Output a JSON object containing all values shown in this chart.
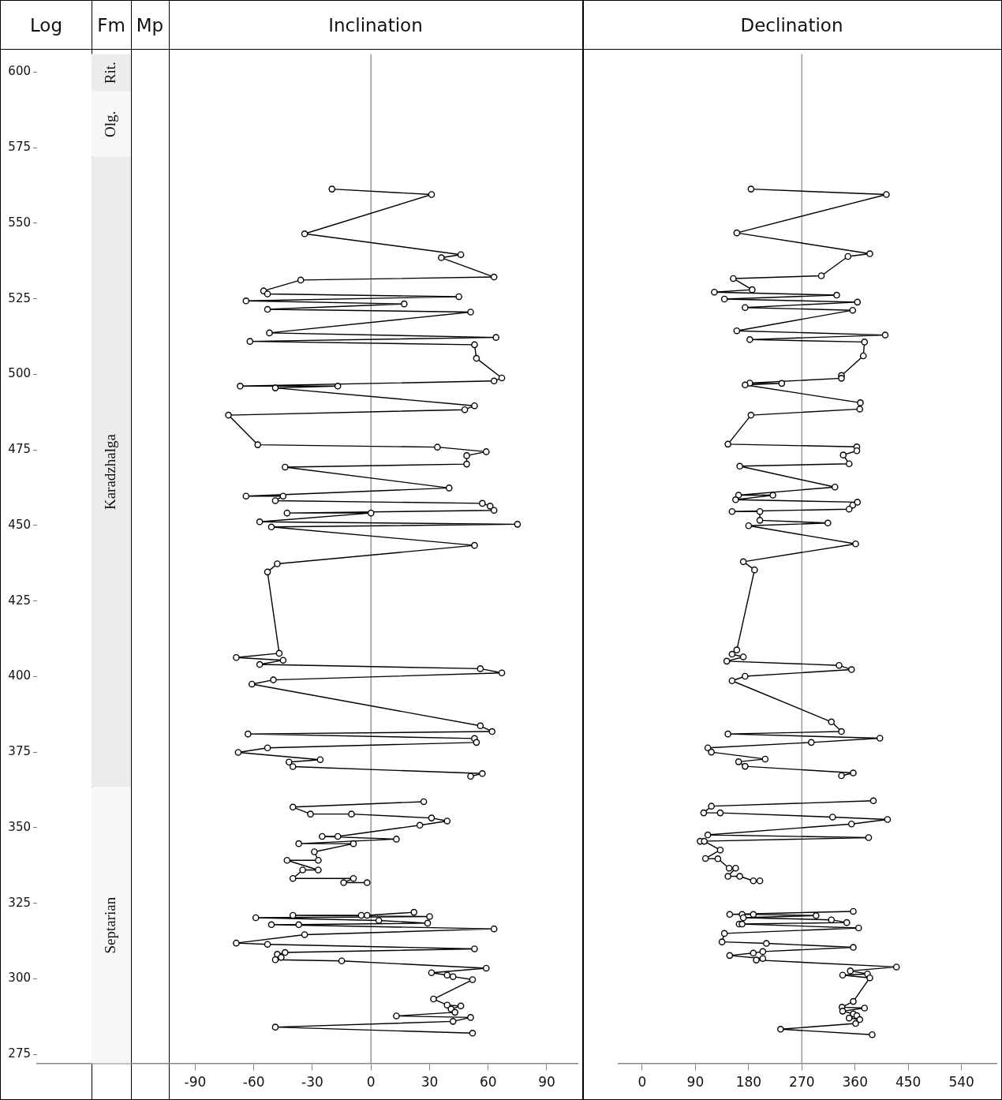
{
  "chart_data": [
    {
      "type": "line",
      "title": "Inclination",
      "annotations": [
        "Log",
        "Fm",
        "Mp"
      ],
      "marker": "circle",
      "line_style": "solid",
      "xlim": [
        -171,
        106
      ],
      "xticks": [
        -90,
        -60,
        -30,
        0,
        30,
        60,
        90
      ],
      "ylim": [
        272,
        606
      ],
      "yticks": [
        275,
        300,
        325,
        350,
        375,
        400,
        425,
        450,
        475,
        500,
        525,
        550,
        575,
        600
      ],
      "ref_lines": [
        {
          "axis": "x",
          "value": 0,
          "color": "#999999"
        }
      ],
      "bands": [
        {
          "axis": "y",
          "from": 593.6,
          "to": 606,
          "label": "Rit.",
          "color": "#ececec"
        },
        {
          "axis": "y",
          "from": 572,
          "to": 593.6,
          "label": "Olg.",
          "color": "#f7f7f7"
        },
        {
          "axis": "y",
          "from": 363.4,
          "to": 572,
          "label": "Karadzhalga",
          "color": "#ececec"
        },
        {
          "axis": "y",
          "from": 272,
          "to": 363.4,
          "label": "Septarian",
          "color": "#f7f7f7"
        }
      ],
      "series": [
        {
          "color": "#000000",
          "x": [
            -20,
            31,
            -34,
            46,
            36,
            63,
            -36,
            -55,
            -53,
            45,
            -64,
            17,
            -53,
            51,
            -52,
            64,
            -62,
            53,
            54,
            67,
            63,
            -67,
            -17,
            -49,
            53,
            48,
            -73,
            -58,
            34,
            59,
            49,
            49,
            -44,
            40,
            -64,
            -45,
            -49,
            57,
            61,
            63,
            -43,
            0,
            -57,
            75,
            -51,
            53,
            -48,
            -53,
            -47,
            -69,
            -45,
            -57,
            56,
            67,
            -50,
            -61,
            56,
            62,
            -63,
            53,
            54,
            -53,
            -68,
            -26,
            -42,
            -40,
            57,
            51,
            null,
            27,
            -40,
            -31,
            -10,
            31,
            39,
            25,
            -17,
            -25,
            13,
            -37,
            -9,
            -29,
            -27,
            -43,
            -27,
            -35,
            -40,
            -9,
            -14,
            -2,
            null,
            22,
            -2,
            -5,
            -40,
            30,
            -59,
            4,
            29,
            -37,
            -51,
            63,
            -34,
            -69,
            -53,
            53,
            -44,
            -48,
            -46,
            -49,
            -15,
            59,
            31,
            39,
            42,
            52,
            32,
            39,
            46,
            41,
            43,
            13,
            51,
            42,
            -49,
            52
          ],
          "values": [
            561.3,
            559.5,
            546.5,
            539.6,
            538.6,
            532.2,
            531.2,
            527.6,
            526.6,
            525.7,
            524.3,
            523.3,
            521.5,
            520.6,
            513.7,
            512.2,
            510.9,
            509.8,
            505.3,
            498.8,
            497.8,
            496.1,
            496.1,
            495.5,
            489.6,
            488.3,
            486.5,
            476.7,
            475.9,
            474.4,
            473.1,
            470.3,
            469.3,
            462.4,
            459.7,
            459.7,
            458.2,
            457.3,
            456.4,
            455.0,
            454.1,
            454.1,
            451.2,
            450.4,
            449.5,
            443.4,
            437.3,
            434.6,
            407.7,
            406.3,
            405.4,
            404.0,
            402.6,
            401.2,
            398.9,
            397.5,
            383.7,
            381.8,
            381.0,
            379.5,
            378.2,
            376.4,
            374.9,
            372.5,
            371.7,
            370.2,
            367.9,
            367.0,
            null,
            358.6,
            356.8,
            354.5,
            354.5,
            353.2,
            352.2,
            350.8,
            347.1,
            347.1,
            346.2,
            344.7,
            344.7,
            342.0,
            339.2,
            339.2,
            336.0,
            336.0,
            333.2,
            333.2,
            331.8,
            331.8,
            null,
            322.0,
            321.0,
            321.0,
            321.0,
            320.6,
            320.2,
            319.3,
            318.4,
            317.9,
            317.9,
            316.5,
            314.6,
            311.8,
            311.4,
            309.9,
            308.7,
            308.1,
            307.1,
            306.3,
            305.9,
            303.5,
            302.0,
            301.2,
            300.7,
            299.7,
            293.3,
            291.3,
            291.0,
            290.0,
            288.9,
            287.7,
            287.2,
            285.9,
            284.0,
            282.0
          ]
        }
      ]
    },
    {
      "type": "line",
      "title": "Declination",
      "marker": "circle",
      "line_style": "solid",
      "tick_labels": "x",
      "xlim": [
        -40,
        600
      ],
      "xticks": [
        0,
        90,
        180,
        270,
        360,
        450,
        540
      ],
      "ylim": [
        272,
        606
      ],
      "ref_lines": [
        {
          "axis": "x",
          "value": 270,
          "color": "#999999"
        }
      ],
      "series": [
        {
          "color": "#000000",
          "x": [
            184,
            413,
            160,
            385,
            348,
            303,
            154,
            186,
            122,
            329,
            139,
            364,
            174,
            356,
            160,
            411,
            182,
            376,
            374,
            337,
            337,
            182,
            236,
            174,
            369,
            368,
            184,
            145,
            363,
            363,
            340,
            350,
            165,
            326,
            163,
            221,
            158,
            364,
            356,
            350,
            152,
            199,
            199,
            314,
            180,
            361,
            171,
            190,
            160,
            152,
            171,
            143,
            333,
            354,
            174,
            152,
            320,
            337,
            145,
            402,
            286,
            111,
            117,
            208,
            163,
            174,
            357,
            337,
            null,
            391,
            117,
            104,
            132,
            322,
            415,
            354,
            111,
            383,
            98,
            105,
            132,
            107,
            128,
            147,
            158,
            145,
            165,
            188,
            199,
            null,
            357,
            148,
            169,
            188,
            294,
            171,
            320,
            346,
            164,
            169,
            366,
            139,
            135,
            210,
            357,
            204,
            188,
            148,
            204,
            193,
            430,
            352,
            381,
            339,
            385,
            357,
            338,
            376,
            339,
            357,
            363,
            350,
            368,
            361,
            234,
            389
          ],
          "values": [
            561.3,
            559.5,
            546.8,
            539.9,
            539.0,
            532.6,
            531.7,
            528.0,
            527.2,
            526.2,
            524.9,
            523.9,
            522.1,
            521.2,
            514.4,
            513.0,
            511.5,
            510.7,
            506.1,
            499.6,
            498.7,
            497.1,
            497.0,
            496.5,
            490.6,
            488.5,
            486.5,
            476.9,
            476.0,
            474.7,
            473.3,
            470.4,
            469.6,
            462.7,
            460.0,
            460.0,
            458.5,
            457.7,
            456.7,
            455.4,
            454.6,
            454.6,
            451.7,
            450.8,
            449.9,
            443.9,
            438.0,
            435.3,
            408.8,
            407.4,
            406.5,
            405.1,
            403.7,
            402.3,
            400.1,
            398.6,
            385.0,
            381.8,
            381.0,
            379.6,
            378.2,
            376.4,
            375.0,
            372.7,
            371.8,
            370.3,
            368.1,
            367.2,
            null,
            358.9,
            357.1,
            354.9,
            354.9,
            353.5,
            352.7,
            351.2,
            347.6,
            346.7,
            345.5,
            345.5,
            342.6,
            339.8,
            339.7,
            336.6,
            336.6,
            333.9,
            333.9,
            332.4,
            332.4,
            null,
            322.3,
            321.3,
            321.3,
            321.3,
            320.9,
            320.2,
            319.5,
            318.6,
            318.1,
            318.1,
            316.8,
            315.0,
            312.2,
            311.7,
            310.4,
            309.0,
            308.5,
            307.7,
            306.7,
            306.2,
            303.9,
            302.6,
            301.6,
            301.2,
            300.3,
            292.5,
            290.6,
            290.3,
            289.3,
            288.4,
            287.8,
            287.0,
            286.5,
            285.2,
            283.3,
            281.5
          ]
        }
      ]
    }
  ]
}
